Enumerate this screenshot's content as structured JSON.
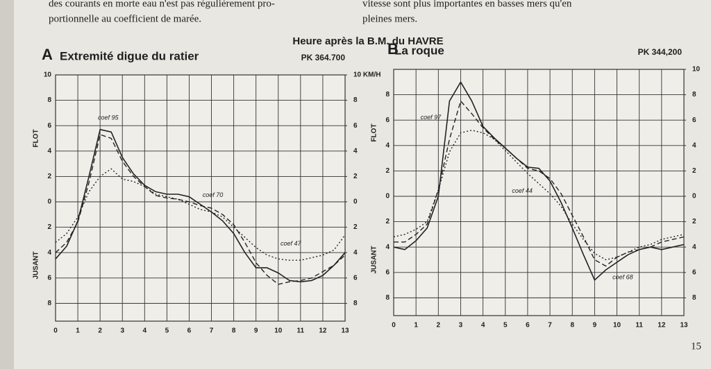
{
  "page": {
    "text_left": [
      "des courants en morte eau n'est pas régulièrement pro-",
      "portionnelle au coefficient de marée."
    ],
    "text_right": [
      "vitesse sont plus importantes en basses mers qu'en",
      "pleines mers."
    ],
    "header": "Heure après la B.M. du HAVRE",
    "page_number": "15"
  },
  "chart_data": [
    {
      "type": "line",
      "letter": "A",
      "title": "Extremité digue du ratier",
      "subtitle": "PK 364.700",
      "y_label_top": "FLOT",
      "y_label_bottom": "JUSANT",
      "x": [
        0,
        0.5,
        1,
        1.5,
        2,
        2.5,
        3,
        3.5,
        4,
        4.5,
        5,
        5.5,
        6,
        6.5,
        7,
        7.5,
        8,
        8.5,
        9,
        9.5,
        10,
        10.5,
        11,
        11.5,
        12,
        12.5,
        13
      ],
      "xlim": [
        0,
        13
      ],
      "xticks": [
        0,
        1,
        2,
        3,
        4,
        5,
        6,
        7,
        8,
        9,
        10,
        11,
        12,
        13
      ],
      "ylim": [
        -9.4,
        10
      ],
      "yticks": [
        10,
        8,
        6,
        4,
        2,
        0,
        {
          "value": -2,
          "label": "2"
        },
        {
          "value": -4,
          "label": "4"
        },
        {
          "value": -6,
          "label": "6"
        },
        {
          "value": -8,
          "label": "8"
        }
      ],
      "y2ticks": [
        {
          "value": 10,
          "label": "10 KM/H"
        },
        8,
        6,
        4,
        2,
        0,
        {
          "value": -2,
          "label": "2"
        },
        {
          "value": -4,
          "label": "4"
        },
        {
          "value": -6,
          "label": "6"
        },
        {
          "value": -8,
          "label": "8"
        }
      ],
      "grid": true,
      "series": [
        {
          "name": "coef 95",
          "color": "#222222",
          "style": "solid",
          "values": [
            -4.5,
            -3.5,
            -1.5,
            2,
            5.7,
            5.5,
            3.5,
            2.2,
            1.3,
            0.8,
            0.6,
            0.6,
            0.4,
            -0.2,
            -0.8,
            -1.5,
            -2.5,
            -4,
            -5.2,
            -5.2,
            -5.6,
            -6.2,
            -6.3,
            -6.2,
            -5.8,
            -5,
            -4
          ]
        },
        {
          "name": "coef 70",
          "color": "#222222",
          "style": "dashed",
          "values": [
            -4,
            -3.2,
            -1.6,
            1.5,
            5.3,
            5,
            3.2,
            2,
            1.2,
            0.5,
            0.3,
            0.2,
            0,
            -0.3,
            -0.5,
            -1,
            -1.8,
            -3.2,
            -4.8,
            -5.8,
            -6.5,
            -6.3,
            -6.2,
            -6,
            -5.5,
            -5,
            -4.2
          ]
        },
        {
          "name": "coef 47",
          "color": "#222222",
          "style": "dotted",
          "values": [
            -3.2,
            -2.5,
            -1.2,
            0.8,
            2,
            2.6,
            1.8,
            1.6,
            1.2,
            0.6,
            0.4,
            0.2,
            -0.2,
            -0.6,
            -0.8,
            -1.2,
            -2,
            -2.8,
            -3.6,
            -4.2,
            -4.5,
            -4.6,
            -4.6,
            -4.4,
            -4.2,
            -3.8,
            -2.6
          ]
        }
      ]
    },
    {
      "type": "line",
      "letter": "B",
      "title": "La roque",
      "subtitle": "PK 344,200",
      "y_label_top": "FLOT",
      "y_label_bottom": "JUSANT",
      "x": [
        0,
        0.5,
        1,
        1.5,
        2,
        2.5,
        3,
        3.5,
        4,
        4.5,
        5,
        5.5,
        6,
        6.5,
        7,
        7.5,
        8,
        8.5,
        9,
        9.5,
        10,
        10.5,
        11,
        11.5,
        12,
        12.5,
        13
      ],
      "xlim": [
        0,
        13
      ],
      "xticks": [
        0,
        1,
        2,
        3,
        4,
        5,
        6,
        7,
        8,
        9,
        10,
        11,
        12,
        13
      ],
      "ylim": [
        -9.4,
        10
      ],
      "yticks": [
        8,
        6,
        4,
        2,
        0,
        {
          "value": -2,
          "label": "2"
        },
        {
          "value": -4,
          "label": "4"
        },
        {
          "value": -6,
          "label": "6"
        },
        {
          "value": -8,
          "label": "8"
        }
      ],
      "y2ticks": [
        10,
        8,
        6,
        4,
        2,
        0,
        {
          "value": -2,
          "label": "2"
        },
        {
          "value": -4,
          "label": "4"
        },
        {
          "value": -6,
          "label": "6"
        },
        {
          "value": -8,
          "label": "8"
        }
      ],
      "grid": true,
      "series": [
        {
          "name": "coef 97",
          "color": "#222222",
          "style": "solid",
          "values": [
            -4,
            -4.2,
            -3.5,
            -2.5,
            0,
            7.5,
            9,
            7.5,
            5.5,
            4.6,
            3.8,
            3,
            2.3,
            2.2,
            1.2,
            -0.5,
            -2.5,
            -4.6,
            -6.6,
            -5.8,
            -5.2,
            -4.6,
            -4.2,
            -4,
            -4.2,
            -4,
            -3.8
          ]
        },
        {
          "name": "coef 68",
          "color": "#222222",
          "style": "dashed",
          "values": [
            -3.6,
            -3.6,
            -3,
            -2.2,
            0.5,
            4.5,
            7.5,
            6.5,
            5.4,
            4.5,
            3.8,
            3,
            2.2,
            2,
            1.4,
            0.2,
            -1.5,
            -3.2,
            -5,
            -5.5,
            -4.8,
            -4.4,
            -4.2,
            -4,
            -3.6,
            -3.4,
            -3.2
          ]
        },
        {
          "name": "coef 44",
          "color": "#222222",
          "style": "dotted",
          "values": [
            -3.2,
            -3,
            -2.6,
            -2,
            0.5,
            3.5,
            5,
            5.2,
            5,
            4.5,
            3.6,
            2.7,
            1.8,
            1,
            0.2,
            -0.8,
            -2.2,
            -3.4,
            -4.5,
            -5,
            -4.8,
            -4.4,
            -4,
            -3.8,
            -3.4,
            -3.2,
            -3
          ]
        }
      ]
    }
  ]
}
